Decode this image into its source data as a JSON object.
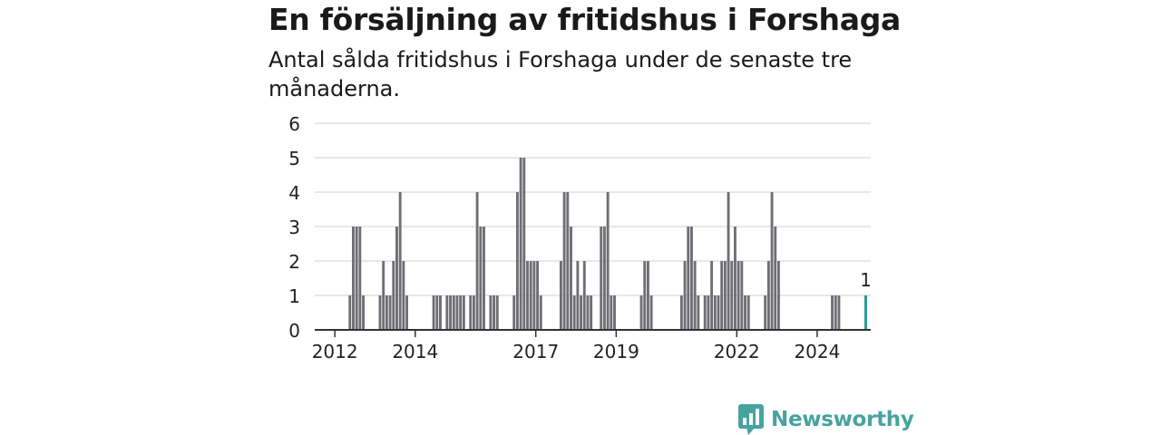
{
  "title": "En försäljning av fritidshus i Forshaga",
  "subtitle": "Antal sålda fritidshus i Forshaga under de senaste tre månaderna.",
  "brand": {
    "name": "Newsworthy",
    "icon": "newsworthy-logo-icon",
    "color": "#47a3a0"
  },
  "colors": {
    "bar": "#6e6e75",
    "highlight": "#1e9a96",
    "grid": "#d9d9d9",
    "axis": "#333333"
  },
  "chart_data": {
    "type": "bar",
    "title": "En försäljning av fritidshus i Forshaga",
    "xlabel": "",
    "ylabel": "",
    "ylim": [
      0,
      6
    ],
    "yticks": [
      0,
      1,
      2,
      3,
      4,
      5,
      6
    ],
    "grid": true,
    "legend": "none",
    "x_start": "2011-07",
    "x_end": "2025-05",
    "xticks": [
      "2012",
      "2014",
      "2017",
      "2019",
      "2022",
      "2024"
    ],
    "xtick_months": [
      "2012-01",
      "2014-01",
      "2017-01",
      "2019-01",
      "2022-01",
      "2024-01"
    ],
    "highlight_label": "1",
    "bars": [
      {
        "month": "2012-05",
        "value": 1
      },
      {
        "month": "2012-06",
        "value": 3
      },
      {
        "month": "2012-07",
        "value": 3
      },
      {
        "month": "2012-08",
        "value": 3
      },
      {
        "month": "2012-09",
        "value": 1
      },
      {
        "month": "2013-02",
        "value": 1
      },
      {
        "month": "2013-03",
        "value": 2
      },
      {
        "month": "2013-04",
        "value": 1
      },
      {
        "month": "2013-05",
        "value": 1
      },
      {
        "month": "2013-06",
        "value": 2
      },
      {
        "month": "2013-07",
        "value": 3
      },
      {
        "month": "2013-08",
        "value": 4
      },
      {
        "month": "2013-09",
        "value": 2
      },
      {
        "month": "2013-10",
        "value": 1
      },
      {
        "month": "2014-06",
        "value": 1
      },
      {
        "month": "2014-07",
        "value": 1
      },
      {
        "month": "2014-08",
        "value": 1
      },
      {
        "month": "2014-10",
        "value": 1
      },
      {
        "month": "2014-11",
        "value": 1
      },
      {
        "month": "2014-12",
        "value": 1
      },
      {
        "month": "2015-01",
        "value": 1
      },
      {
        "month": "2015-02",
        "value": 1
      },
      {
        "month": "2015-03",
        "value": 1
      },
      {
        "month": "2015-05",
        "value": 1
      },
      {
        "month": "2015-06",
        "value": 1
      },
      {
        "month": "2015-07",
        "value": 4
      },
      {
        "month": "2015-08",
        "value": 3
      },
      {
        "month": "2015-09",
        "value": 3
      },
      {
        "month": "2015-11",
        "value": 1
      },
      {
        "month": "2015-12",
        "value": 1
      },
      {
        "month": "2016-01",
        "value": 1
      },
      {
        "month": "2016-06",
        "value": 1
      },
      {
        "month": "2016-07",
        "value": 4
      },
      {
        "month": "2016-08",
        "value": 5
      },
      {
        "month": "2016-09",
        "value": 5
      },
      {
        "month": "2016-10",
        "value": 2
      },
      {
        "month": "2016-11",
        "value": 2
      },
      {
        "month": "2016-12",
        "value": 2
      },
      {
        "month": "2017-01",
        "value": 2
      },
      {
        "month": "2017-02",
        "value": 1
      },
      {
        "month": "2017-08",
        "value": 2
      },
      {
        "month": "2017-09",
        "value": 4
      },
      {
        "month": "2017-10",
        "value": 4
      },
      {
        "month": "2017-11",
        "value": 3
      },
      {
        "month": "2017-12",
        "value": 1
      },
      {
        "month": "2018-01",
        "value": 2
      },
      {
        "month": "2018-02",
        "value": 1
      },
      {
        "month": "2018-03",
        "value": 2
      },
      {
        "month": "2018-04",
        "value": 1
      },
      {
        "month": "2018-05",
        "value": 1
      },
      {
        "month": "2018-08",
        "value": 3
      },
      {
        "month": "2018-09",
        "value": 3
      },
      {
        "month": "2018-10",
        "value": 4
      },
      {
        "month": "2018-11",
        "value": 1
      },
      {
        "month": "2018-12",
        "value": 1
      },
      {
        "month": "2019-08",
        "value": 1
      },
      {
        "month": "2019-09",
        "value": 2
      },
      {
        "month": "2019-10",
        "value": 2
      },
      {
        "month": "2019-11",
        "value": 1
      },
      {
        "month": "2020-08",
        "value": 1
      },
      {
        "month": "2020-09",
        "value": 2
      },
      {
        "month": "2020-10",
        "value": 3
      },
      {
        "month": "2020-11",
        "value": 3
      },
      {
        "month": "2020-12",
        "value": 2
      },
      {
        "month": "2021-01",
        "value": 1
      },
      {
        "month": "2021-03",
        "value": 1
      },
      {
        "month": "2021-04",
        "value": 1
      },
      {
        "month": "2021-05",
        "value": 2
      },
      {
        "month": "2021-06",
        "value": 1
      },
      {
        "month": "2021-07",
        "value": 1
      },
      {
        "month": "2021-08",
        "value": 2
      },
      {
        "month": "2021-09",
        "value": 2
      },
      {
        "month": "2021-10",
        "value": 4
      },
      {
        "month": "2021-11",
        "value": 2
      },
      {
        "month": "2021-12",
        "value": 3
      },
      {
        "month": "2022-01",
        "value": 2
      },
      {
        "month": "2022-02",
        "value": 2
      },
      {
        "month": "2022-03",
        "value": 1
      },
      {
        "month": "2022-04",
        "value": 1
      },
      {
        "month": "2022-09",
        "value": 1
      },
      {
        "month": "2022-10",
        "value": 2
      },
      {
        "month": "2022-11",
        "value": 4
      },
      {
        "month": "2022-12",
        "value": 3
      },
      {
        "month": "2023-01",
        "value": 2
      },
      {
        "month": "2024-05",
        "value": 1
      },
      {
        "month": "2024-06",
        "value": 1
      },
      {
        "month": "2024-07",
        "value": 1
      },
      {
        "month": "2025-03",
        "value": 1,
        "highlight": true
      }
    ]
  }
}
